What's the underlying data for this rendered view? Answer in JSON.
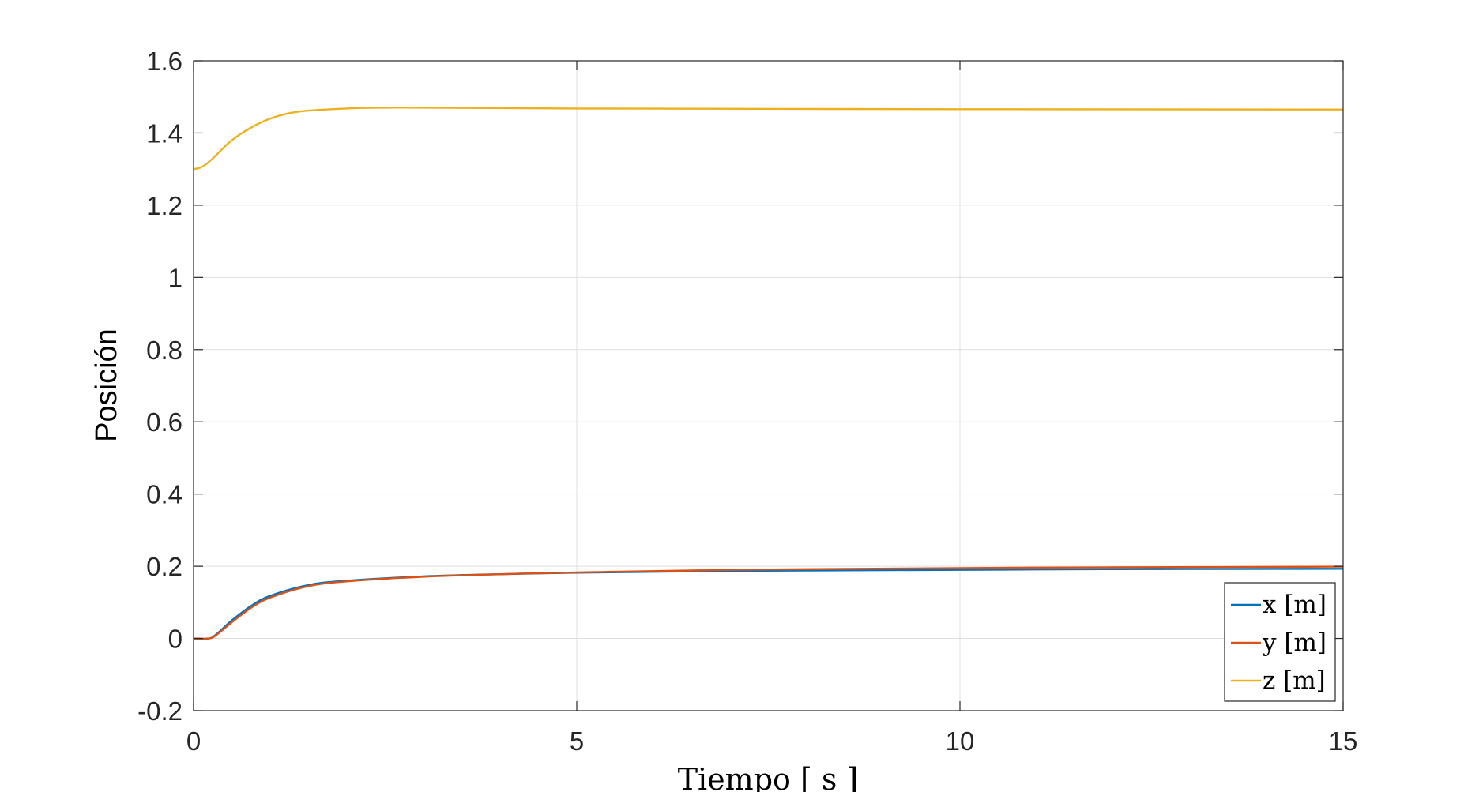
{
  "chart_data": {
    "type": "line",
    "title": "",
    "xlabel": "Tiempo [ s ]",
    "ylabel": "Posición",
    "xlim": [
      0,
      15
    ],
    "ylim": [
      -0.2,
      1.6
    ],
    "xticks": [
      0,
      5,
      10,
      15
    ],
    "xtick_labels": [
      "0",
      "5",
      "10",
      "15"
    ],
    "yticks": [
      -0.2,
      0,
      0.2,
      0.4,
      0.6,
      0.8,
      1,
      1.2,
      1.4,
      1.6
    ],
    "ytick_labels": [
      "-0.2",
      "0",
      "0.2",
      "0.4",
      "0.6",
      "0.8",
      "1",
      "1.2",
      "1.4",
      "1.6"
    ],
    "grid": true,
    "legend_position": "bottom-right",
    "series": [
      {
        "name": "x [m]",
        "color": "#0072BD",
        "x": [
          0,
          0.2,
          0.3,
          0.5,
          0.75,
          1,
          1.5,
          2,
          3,
          4,
          5,
          7,
          10,
          12,
          15
        ],
        "y": [
          0,
          0,
          0.012,
          0.05,
          0.09,
          0.118,
          0.148,
          0.16,
          0.172,
          0.178,
          0.182,
          0.187,
          0.19,
          0.192,
          0.193
        ]
      },
      {
        "name": "y [m]",
        "color": "#D95319",
        "x": [
          0,
          0.2,
          0.3,
          0.5,
          0.75,
          1,
          1.5,
          2,
          3,
          4,
          5,
          7,
          10,
          12,
          15
        ],
        "y": [
          0,
          0,
          0.01,
          0.045,
          0.085,
          0.113,
          0.145,
          0.158,
          0.171,
          0.178,
          0.183,
          0.19,
          0.195,
          0.197,
          0.199
        ]
      },
      {
        "name": "z [m]",
        "color": "#EDB120",
        "x": [
          0,
          0.1,
          0.2,
          0.3,
          0.5,
          0.75,
          1,
          1.25,
          1.5,
          2,
          2.5,
          3,
          5,
          10,
          15
        ],
        "y": [
          1.3,
          1.305,
          1.32,
          1.34,
          1.38,
          1.415,
          1.44,
          1.455,
          1.462,
          1.468,
          1.47,
          1.47,
          1.468,
          1.466,
          1.465
        ]
      }
    ]
  }
}
